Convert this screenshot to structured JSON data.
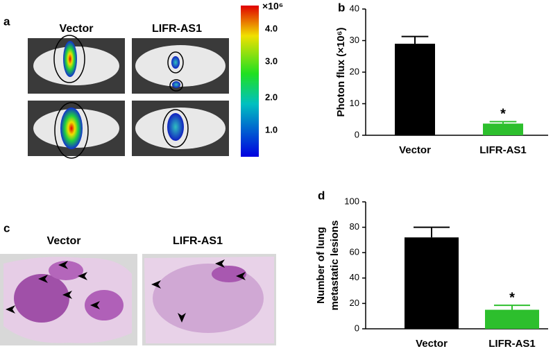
{
  "panels": {
    "a": {
      "label": "a",
      "groups": [
        "Vector",
        "LIFR-AS1"
      ],
      "colorbar_unit": "×10⁶",
      "colorbar_ticks": [
        "4.0",
        "3.0",
        "2.0",
        "1.0"
      ]
    },
    "c": {
      "label": "c",
      "groups": [
        "Vector",
        "LIFR-AS1"
      ]
    }
  },
  "chart_data": [
    {
      "type": "bar",
      "label": "b",
      "ylabel": [
        "Photon flux (×10⁶)"
      ],
      "categories": [
        "Vector",
        "LIFR-AS1"
      ],
      "values": [
        29,
        3.7
      ],
      "errors": [
        2.3,
        0.6
      ],
      "colors": [
        "#000000",
        "#2dbf2d"
      ],
      "annotations": [
        null,
        "*"
      ],
      "ylim": [
        0,
        40
      ],
      "yticks": [
        0,
        10,
        20,
        30,
        40
      ]
    },
    {
      "type": "bar",
      "label": "d",
      "ylabel": [
        "Number of lung",
        "metastatic lesions"
      ],
      "categories": [
        "Vector",
        "LIFR-AS1"
      ],
      "values": [
        72,
        15
      ],
      "errors": [
        8,
        3.5
      ],
      "colors": [
        "#000000",
        "#2dbf2d"
      ],
      "annotations": [
        null,
        "*"
      ],
      "ylim": [
        0,
        100
      ],
      "yticks": [
        0,
        20,
        40,
        60,
        80,
        100
      ]
    }
  ]
}
